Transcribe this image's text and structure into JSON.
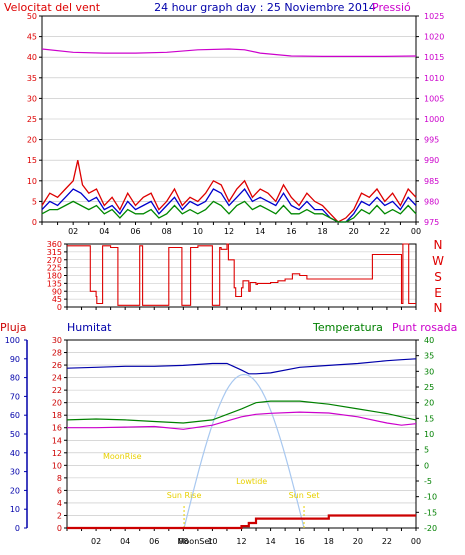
{
  "title": "24 hour graph day : 25 Noviembre 2014",
  "colors": {
    "wind": "#dd0000",
    "gust": "#0000cc",
    "avg": "#008800",
    "pressure": "#cc00cc",
    "rain": "#cc0000",
    "humidity": "#0000aa",
    "temperature": "#008000",
    "dewpoint": "#cc00cc",
    "sun": "#a8c8f0",
    "sunlabel": "#e8d000",
    "axis": "#000000",
    "grid": "#c0c0c0"
  },
  "chart_data": [
    {
      "type": "line",
      "left_label": "Velocitat del vent",
      "right_label": "Pressió",
      "x_ticks": [
        "02",
        "04",
        "06",
        "08",
        "10",
        "12",
        "14",
        "16",
        "18",
        "20",
        "22",
        "00"
      ],
      "xlim": [
        0,
        24
      ],
      "left_ylim": [
        0,
        50
      ],
      "left_ticks": [
        0,
        5,
        10,
        15,
        20,
        25,
        30,
        35,
        40,
        45,
        50
      ],
      "right_ylim": [
        975,
        1025
      ],
      "right_ticks": [
        975,
        980,
        985,
        990,
        995,
        1000,
        1005,
        1010,
        1015,
        1020,
        1025
      ],
      "series": [
        {
          "key": "wind",
          "x": [
            0,
            0.5,
            1,
            1.5,
            2,
            2.3,
            2.6,
            3,
            3.5,
            4,
            4.5,
            5,
            5.5,
            6,
            6.5,
            7,
            7.5,
            8,
            8.5,
            9,
            9.5,
            10,
            10.5,
            11,
            11.5,
            12,
            12.5,
            13,
            13.5,
            14,
            14.5,
            15,
            15.5,
            16,
            16.5,
            17,
            17.5,
            18,
            18.5,
            19,
            19.5,
            20,
            20.5,
            21,
            21.5,
            22,
            22.5,
            23,
            23.5,
            24
          ],
          "y": [
            4,
            7,
            6,
            8,
            10,
            15,
            9,
            7,
            8,
            4,
            6,
            3,
            7,
            4,
            6,
            7,
            3,
            5,
            8,
            4,
            6,
            5,
            7,
            10,
            9,
            5,
            8,
            10,
            6,
            8,
            7,
            5,
            9,
            6,
            4,
            7,
            5,
            4,
            2,
            0,
            1,
            3,
            7,
            6,
            8,
            5,
            7,
            4,
            8,
            6
          ]
        },
        {
          "key": "gust",
          "x": [
            0,
            0.5,
            1,
            1.5,
            2,
            2.5,
            3,
            3.5,
            4,
            4.5,
            5,
            5.5,
            6,
            6.5,
            7,
            7.5,
            8,
            8.5,
            9,
            9.5,
            10,
            10.5,
            11,
            11.5,
            12,
            12.5,
            13,
            13.5,
            14,
            14.5,
            15,
            15.5,
            16,
            16.5,
            17,
            17.5,
            18,
            18.5,
            19,
            19.5,
            20,
            20.5,
            21,
            21.5,
            22,
            22.5,
            23,
            23.5,
            24
          ],
          "y": [
            3,
            5,
            4,
            6,
            8,
            7,
            5,
            6,
            3,
            4,
            2,
            5,
            3,
            4,
            5,
            2,
            4,
            6,
            3,
            5,
            4,
            5,
            8,
            7,
            4,
            6,
            8,
            5,
            6,
            5,
            4,
            7,
            4,
            3,
            5,
            3,
            3,
            1,
            0,
            0,
            2,
            5,
            4,
            6,
            4,
            5,
            3,
            6,
            4
          ]
        },
        {
          "key": "avg",
          "x": [
            0,
            0.5,
            1,
            1.5,
            2,
            2.5,
            3,
            3.5,
            4,
            4.5,
            5,
            5.5,
            6,
            6.5,
            7,
            7.5,
            8,
            8.5,
            9,
            9.5,
            10,
            10.5,
            11,
            11.5,
            12,
            12.5,
            13,
            13.5,
            14,
            14.5,
            15,
            15.5,
            16,
            16.5,
            17,
            17.5,
            18,
            18.5,
            19,
            19.5,
            20,
            20.5,
            21,
            21.5,
            22,
            22.5,
            23,
            23.5,
            24
          ],
          "y": [
            2,
            3,
            3,
            4,
            5,
            4,
            3,
            4,
            2,
            3,
            1,
            3,
            2,
            2,
            3,
            1,
            2,
            4,
            2,
            3,
            2,
            3,
            5,
            4,
            2,
            4,
            5,
            3,
            4,
            3,
            2,
            4,
            2,
            2,
            3,
            2,
            2,
            1,
            0,
            0,
            1,
            3,
            2,
            4,
            2,
            3,
            2,
            4,
            2
          ]
        },
        {
          "key": "pressure",
          "axis": "right",
          "x": [
            0,
            2,
            4,
            6,
            8,
            10,
            12,
            13,
            14,
            16,
            18,
            20,
            22,
            24
          ],
          "y": [
            1017,
            1016.2,
            1016,
            1016,
            1016.2,
            1016.8,
            1017,
            1016.8,
            1016,
            1015.3,
            1015.2,
            1015.2,
            1015.2,
            1015.3
          ]
        }
      ]
    },
    {
      "type": "line",
      "right_labels": [
        "N",
        "W",
        "S",
        "E",
        "N"
      ],
      "left_ylim": [
        0,
        360
      ],
      "left_ticks": [
        0,
        45,
        90,
        135,
        180,
        225,
        270,
        315,
        360
      ],
      "series": [
        {
          "key": "wind",
          "x": [
            0,
            1.5,
            1.6,
            2,
            2.05,
            2.4,
            2.45,
            3,
            3.1,
            3.5,
            3.55,
            5,
            5.05,
            5.2,
            5.25,
            7,
            7.05,
            7.9,
            7.95,
            8.5,
            8.55,
            9,
            9.05,
            10,
            10.05,
            10.5,
            10.6,
            11,
            11.1,
            11.5,
            11.6,
            12,
            12.1,
            12.5,
            12.6,
            13,
            13.1,
            14,
            14.5,
            15,
            15.5,
            16,
            16.5,
            17,
            18,
            19,
            20,
            21,
            21.5,
            22,
            22.5,
            23,
            23.1,
            23.5,
            23.6,
            24
          ],
          "y": [
            350,
            350,
            90,
            60,
            20,
            20,
            350,
            340,
            340,
            10,
            10,
            350,
            350,
            10,
            10,
            340,
            340,
            10,
            10,
            340,
            340,
            350,
            350,
            10,
            10,
            340,
            330,
            360,
            270,
            110,
            60,
            110,
            150,
            90,
            140,
            130,
            135,
            140,
            150,
            160,
            190,
            180,
            160,
            160,
            160,
            160,
            160,
            300,
            300,
            300,
            300,
            20,
            360,
            20,
            20,
            20
          ]
        }
      ]
    },
    {
      "type": "line",
      "left_label_1": "Pluja",
      "left_label_2": "Humitat",
      "right_label_1": "Temperatura",
      "right_label_2": "Punt rosada",
      "x_ticks": [
        "02",
        "04",
        "06",
        "08",
        "10",
        "12",
        "14",
        "16",
        "18",
        "20",
        "22",
        "00"
      ],
      "humidity_ylim": [
        0,
        100
      ],
      "humidity_ticks": [
        0,
        10,
        20,
        30,
        40,
        50,
        60,
        70,
        80,
        90,
        100
      ],
      "rain_ylim": [
        0,
        30
      ],
      "rain_ticks": [
        0,
        2,
        4,
        6,
        8,
        10,
        12,
        14,
        16,
        18,
        20,
        22,
        24,
        26,
        28,
        30
      ],
      "temp_ylim": [
        -20,
        40
      ],
      "temp_ticks": [
        -20,
        -15,
        -10,
        -5,
        0,
        5,
        10,
        15,
        20,
        25,
        30,
        35,
        40
      ],
      "series": [
        {
          "key": "humidity",
          "axis": "humidity",
          "x": [
            0,
            2,
            4,
            6,
            8,
            10,
            11,
            12,
            12.5,
            13,
            14,
            16,
            18,
            20,
            22,
            23,
            24
          ],
          "y": [
            85,
            85.5,
            86,
            86,
            86.5,
            87.5,
            87.5,
            84,
            82,
            82,
            82.5,
            85.5,
            86.5,
            87.5,
            89,
            89.5,
            90
          ]
        },
        {
          "key": "temperature",
          "axis": "temp",
          "x": [
            0,
            2,
            4,
            6,
            8,
            10,
            12,
            13,
            14,
            16,
            18,
            20,
            22,
            23,
            24
          ],
          "y": [
            14.5,
            14.8,
            14.5,
            14,
            13.5,
            14.5,
            18,
            20,
            20.5,
            20.5,
            19.5,
            18,
            16.5,
            15.5,
            14.5
          ]
        },
        {
          "key": "dewpoint",
          "axis": "temp",
          "x": [
            0,
            2,
            4,
            6,
            8,
            10,
            12,
            13,
            14,
            16,
            18,
            20,
            22,
            23,
            24
          ],
          "y": [
            12,
            12,
            12.2,
            12.4,
            11.5,
            12.8,
            15.5,
            16.3,
            16.6,
            17,
            16.7,
            15.5,
            13.5,
            12.8,
            13.3
          ]
        },
        {
          "key": "rain",
          "axis": "rain",
          "x": [
            0,
            8,
            9,
            12,
            12.5,
            13,
            18,
            20,
            22,
            24
          ],
          "y": [
            0,
            0,
            0,
            0.3,
            0.8,
            1.5,
            2,
            2,
            2,
            2
          ]
        }
      ],
      "sun_curve_peak_deg": 29,
      "annotations": {
        "sun_rise": "Sun Rise",
        "sun_set": "Sun Set",
        "sunrise_x": 8.05,
        "sunset_x": 16.3,
        "moonrise": "MoonRise",
        "moonrise_x": 3.8,
        "moonrise_y": 11,
        "moonset": "MoonSet",
        "moonset_x": 8.8,
        "moon_low": "Lowtide",
        "moon_low_x": 12.7,
        "moon_low_y": 7
      }
    }
  ]
}
